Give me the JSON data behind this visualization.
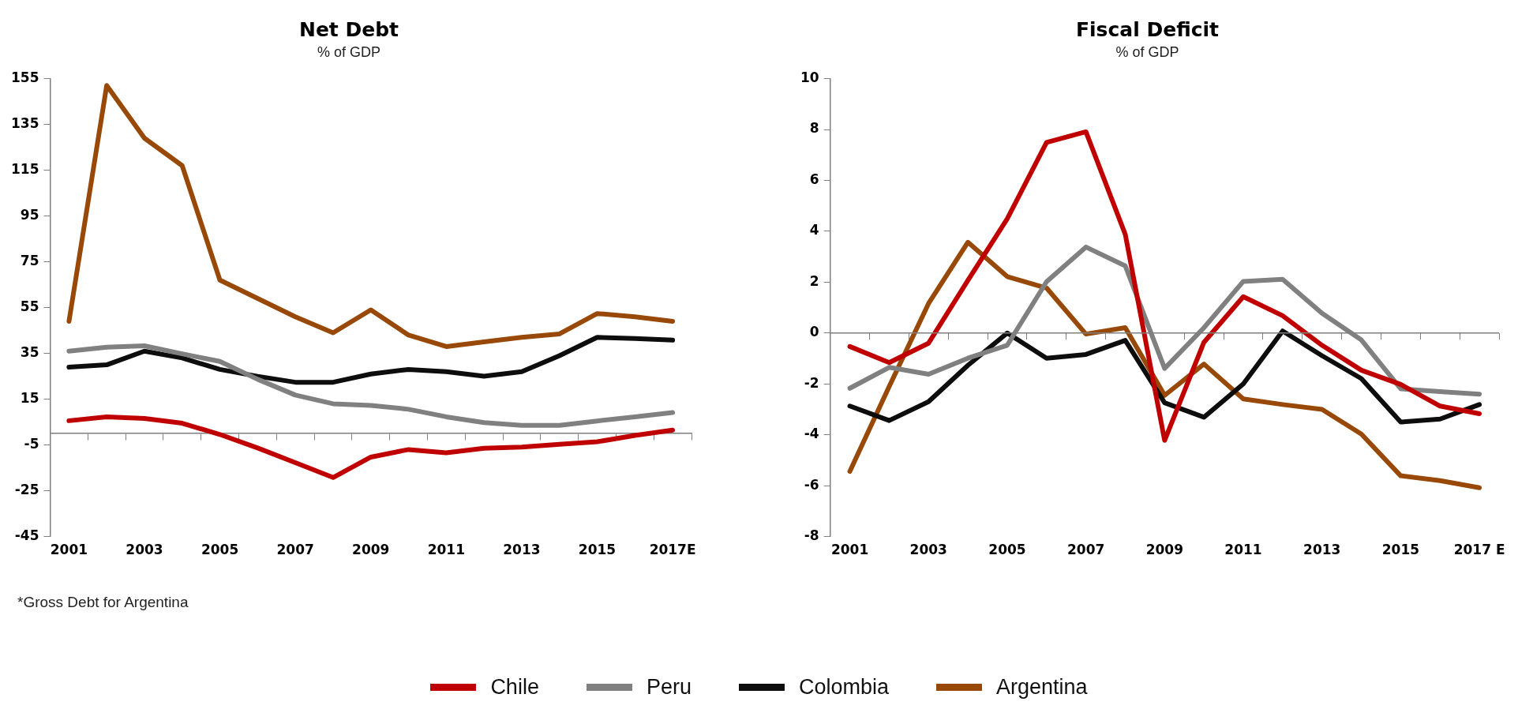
{
  "chart_data": [
    {
      "type": "line",
      "title": "Net Debt",
      "subtitle": "% of GDP",
      "categories": [
        "2001",
        null,
        "2003",
        null,
        "2005",
        null,
        "2007",
        null,
        "2009",
        null,
        "2011",
        null,
        "2013",
        null,
        "2015",
        null,
        "2017E"
      ],
      "ylim": [
        -45,
        155
      ],
      "yticks": [
        -45,
        -25,
        -5,
        15,
        35,
        55,
        75,
        95,
        115,
        135,
        155
      ],
      "grid": false,
      "legend": "bottom",
      "annotations": [
        "*Gross Debt for Argentina"
      ],
      "series": [
        {
          "name": "Chile",
          "color": "#c00000",
          "values": [
            5.6,
            7.3,
            6.6,
            4.5,
            -0.4,
            -6.3,
            -12.7,
            -19.2,
            -10.3,
            -7,
            -8.4,
            -6.4,
            -5.9,
            -4.7,
            -3.6,
            -0.8,
            1.5
          ]
        },
        {
          "name": "Peru",
          "color": "#808080",
          "values": [
            36,
            37.7,
            38.3,
            34.8,
            31.5,
            23.7,
            16.8,
            13,
            12.3,
            10.6,
            7.3,
            4.8,
            3.6,
            3.6,
            5.5,
            7.3,
            9.2
          ]
        },
        {
          "name": "Colombia",
          "color": "#0d0d0d",
          "values": [
            29,
            30,
            36,
            33,
            28,
            25,
            22.4,
            22.4,
            26,
            28,
            27,
            25,
            27,
            34,
            42,
            41.5,
            40.8
          ]
        },
        {
          "name": "Argentina",
          "color": "#984807",
          "values": [
            49,
            152,
            129,
            117,
            67,
            59,
            51,
            44,
            54,
            43,
            38,
            40,
            42,
            43.5,
            52.4,
            51,
            49
          ]
        }
      ]
    },
    {
      "type": "line",
      "title": "Fiscal Deficit",
      "subtitle": "% of GDP",
      "categories": [
        "2001",
        null,
        "2003",
        null,
        "2005",
        null,
        "2007",
        null,
        "2009",
        null,
        "2011",
        null,
        "2013",
        null,
        "2015",
        null,
        "2017 E"
      ],
      "ylim": [
        -8,
        10
      ],
      "yticks": [
        -8,
        -6,
        -4,
        -2,
        0,
        2,
        4,
        6,
        8,
        10
      ],
      "grid": false,
      "ref_lines": [
        {
          "axis": "y",
          "value": 0,
          "color": "#7f7f7f"
        }
      ],
      "series": [
        {
          "color": "#c00000",
          "values": [
            -0.53,
            -1.16,
            -0.4,
            2.07,
            4.49,
            7.49,
            7.91,
            3.88,
            -4.22,
            -0.36,
            1.43,
            0.68,
            -0.48,
            -1.46,
            -2.02,
            -2.87,
            -3.17
          ]
        },
        {
          "color": "#808080",
          "values": [
            -2.17,
            -1.35,
            -1.62,
            -0.99,
            -0.48,
            2.02,
            3.38,
            2.64,
            -1.39,
            0.21,
            2.03,
            2.11,
            0.78,
            -0.27,
            -2.19,
            -2.3,
            -2.4
          ]
        },
        {
          "color": "#0d0d0d",
          "values": [
            -2.87,
            -3.44,
            -2.7,
            -1.27,
            0,
            -0.99,
            -0.84,
            -0.29,
            -2.74,
            -3.31,
            -2,
            0.08,
            -0.89,
            -1.79,
            -3.5,
            -3.38,
            -2.81
          ]
        },
        {
          "color": "#984807",
          "values": [
            -5.44,
            -2.1,
            1.16,
            3.57,
            2.22,
            1.77,
            -0.04,
            0.21,
            -2.45,
            -1.22,
            -2.59,
            -2.81,
            -3,
            -3.97,
            -5.61,
            -5.8,
            -6.08
          ]
        }
      ]
    }
  ]
}
